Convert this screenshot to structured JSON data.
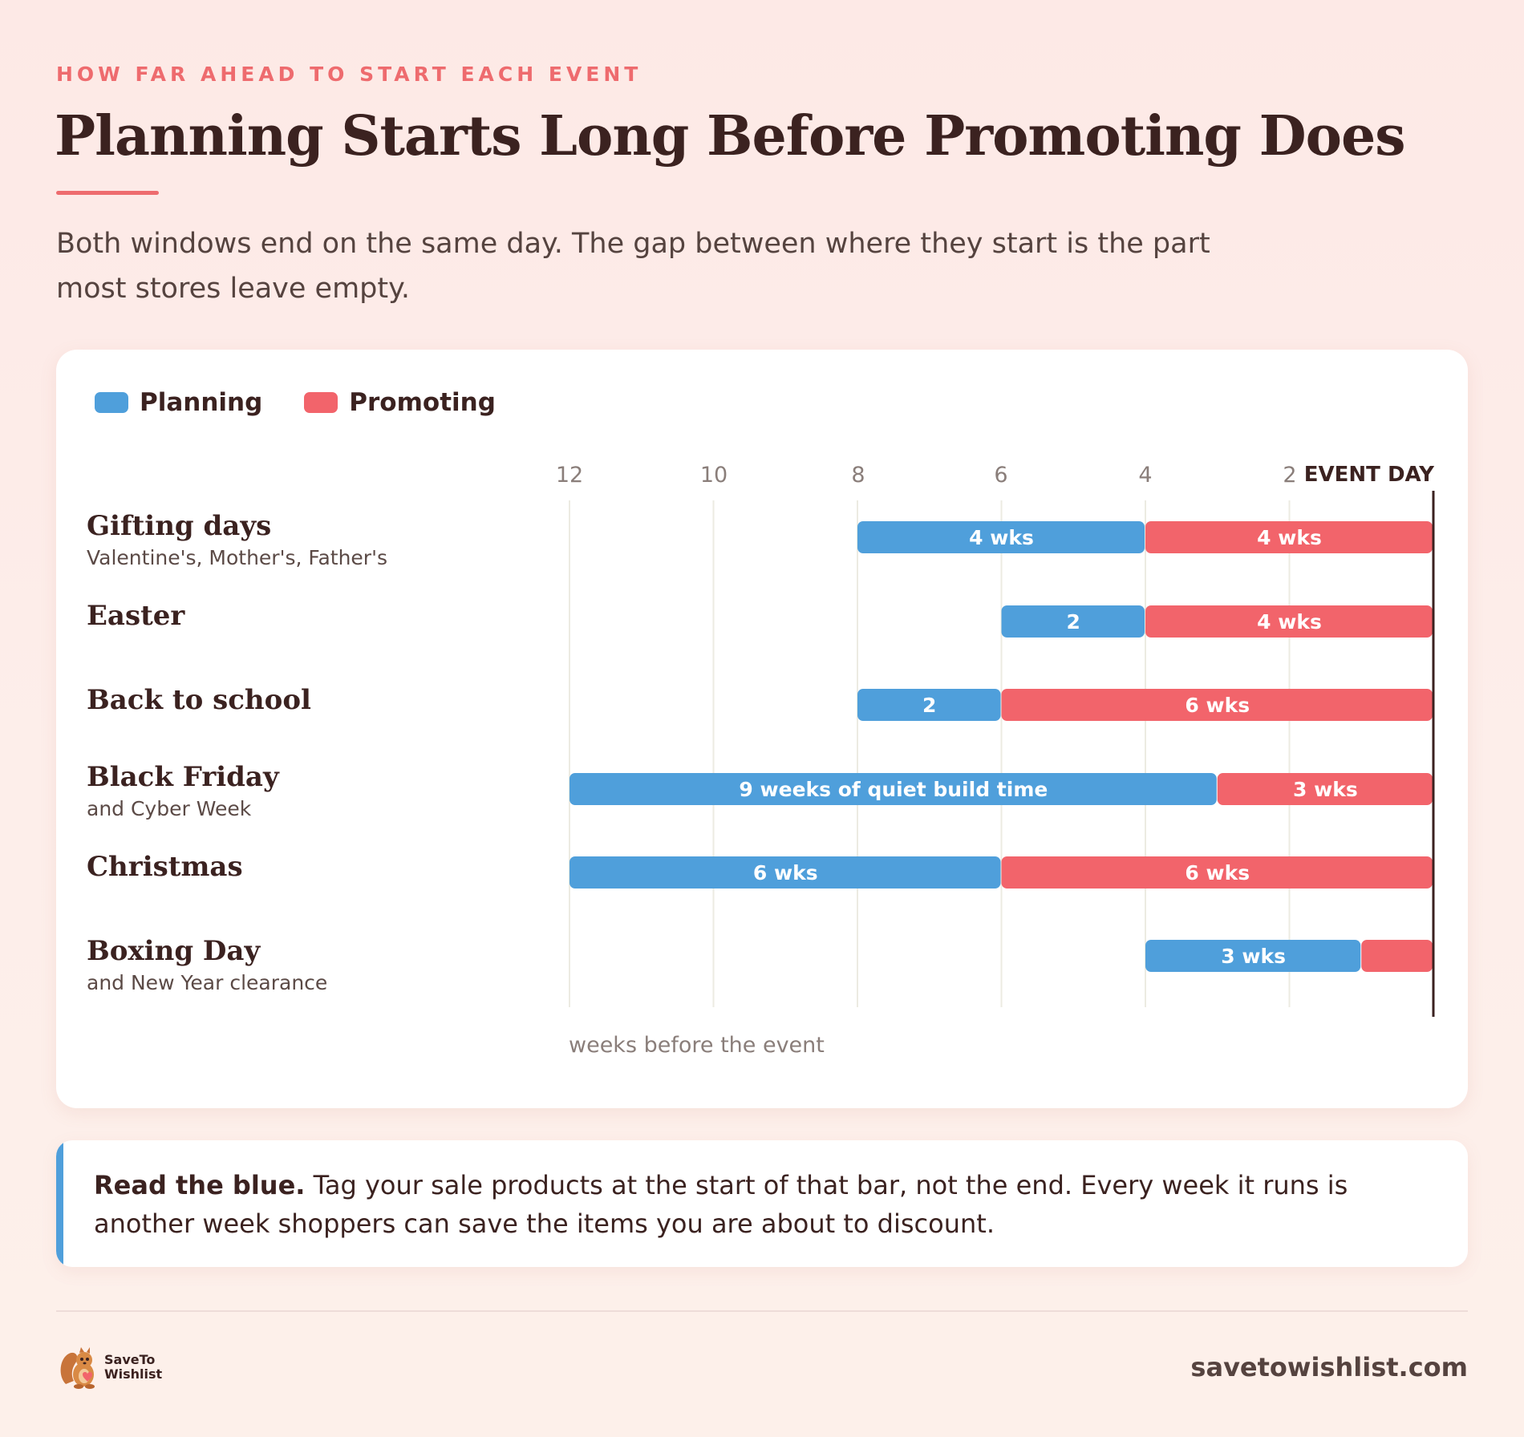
{
  "header": {
    "eyebrow": "HOW FAR AHEAD TO START EACH EVENT",
    "title": "Planning Starts Long Before Promoting Does",
    "subtitle": "Both windows end on the same day. The gap between where they start is the part most stores leave empty."
  },
  "colors": {
    "planning": "#4f9fdb",
    "promoting": "#f2646b",
    "accent": "#ee6b6e",
    "text": "#3b2220"
  },
  "chart_data": {
    "type": "bar",
    "orientation": "horizontal-stacked",
    "legend": [
      {
        "name": "Planning",
        "color": "#4f9fdb"
      },
      {
        "name": "Promoting",
        "color": "#f2646b"
      }
    ],
    "legend_position": "top-left",
    "xlabel": "weeks before the event",
    "x_ticks": [
      12,
      10,
      8,
      6,
      4,
      2
    ],
    "x_end_label": "EVENT DAY",
    "xlim": [
      12,
      0
    ],
    "grid": true,
    "categories": [
      {
        "name": "Gifting days",
        "sub": "Valentine's, Mother's, Father's",
        "planning": {
          "start": 8,
          "end": 4,
          "label": "4 wks"
        },
        "promoting": {
          "start": 4,
          "end": 0,
          "label": "4 wks"
        }
      },
      {
        "name": "Easter",
        "sub": "",
        "planning": {
          "start": 6,
          "end": 4,
          "label": "2"
        },
        "promoting": {
          "start": 4,
          "end": 0,
          "label": "4 wks"
        }
      },
      {
        "name": "Back to school",
        "sub": "",
        "planning": {
          "start": 8,
          "end": 6,
          "label": "2"
        },
        "promoting": {
          "start": 6,
          "end": 0,
          "label": "6 wks"
        }
      },
      {
        "name": "Black Friday",
        "sub": "and Cyber Week",
        "planning": {
          "start": 12,
          "end": 3,
          "label": "9 weeks of quiet build time"
        },
        "promoting": {
          "start": 3,
          "end": 0,
          "label": "3 wks"
        }
      },
      {
        "name": "Christmas",
        "sub": "",
        "planning": {
          "start": 12,
          "end": 6,
          "label": "6 wks"
        },
        "promoting": {
          "start": 6,
          "end": 0,
          "label": "6 wks"
        }
      },
      {
        "name": "Boxing Day",
        "sub": "and New Year clearance",
        "planning": {
          "start": 4,
          "end": 1,
          "label": "3 wks"
        },
        "promoting": {
          "start": 1,
          "end": 0,
          "label": ""
        }
      }
    ]
  },
  "callout": {
    "lead": "Read the blue.",
    "body": " Tag your sale products at the start of that bar, not the end. Every week it runs is another week shoppers can save the items you are about to discount."
  },
  "footer": {
    "logo_line1": "SaveTo",
    "logo_line2": "Wishlist",
    "site": "savetowishlist.com"
  }
}
